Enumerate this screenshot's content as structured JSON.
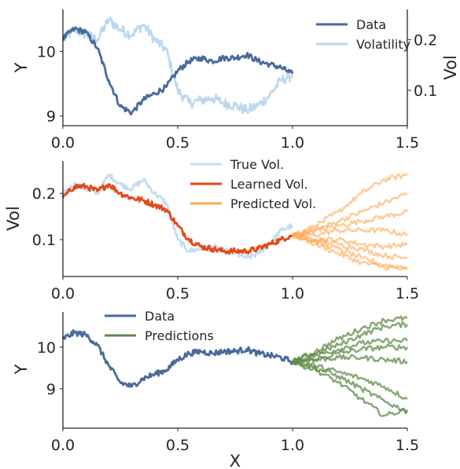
{
  "colors": {
    "data": "#4a6a9b",
    "volatility": "#bdd7ee",
    "true_vol": "#c6dcf0",
    "learned_vol": "#e34a17",
    "predicted_vol": "#ffa64d",
    "predictions": "#5e8a47",
    "axis": "#262626"
  },
  "chart_data": [
    {
      "type": "line",
      "panel": "top",
      "xlabel": "",
      "ylabel": "Y",
      "y2label": "Vol",
      "xlim": [
        0,
        1.5
      ],
      "ylim": [
        8.85,
        10.65
      ],
      "y2lim": [
        0.03,
        0.26
      ],
      "xticks": [
        "0.0",
        "0.5",
        "1.0",
        "1.5"
      ],
      "yticks": [
        "9",
        "10"
      ],
      "y2ticks": [
        "0.1",
        "0.2"
      ],
      "legend": {
        "position": "top-right",
        "entries": [
          "Data",
          "Volatility"
        ]
      },
      "series": [
        {
          "name": "Data",
          "axis": "left",
          "color_key": "data",
          "x": [
            0.0,
            0.05,
            0.1,
            0.15,
            0.2,
            0.25,
            0.3,
            0.35,
            0.4,
            0.45,
            0.5,
            0.55,
            0.6,
            0.65,
            0.7,
            0.75,
            0.8,
            0.85,
            0.9,
            0.95,
            1.0
          ],
          "y": [
            10.2,
            10.35,
            10.3,
            10.05,
            9.55,
            9.15,
            9.05,
            9.25,
            9.35,
            9.45,
            9.7,
            9.85,
            9.9,
            9.85,
            9.9,
            9.9,
            9.95,
            9.85,
            9.8,
            9.75,
            9.65
          ]
        },
        {
          "name": "Volatility",
          "axis": "right",
          "color_key": "volatility",
          "x": [
            0.0,
            0.05,
            0.1,
            0.15,
            0.2,
            0.25,
            0.3,
            0.35,
            0.4,
            0.45,
            0.5,
            0.55,
            0.6,
            0.65,
            0.7,
            0.75,
            0.8,
            0.85,
            0.9,
            0.95,
            1.0
          ],
          "y": [
            0.2,
            0.22,
            0.21,
            0.2,
            0.24,
            0.22,
            0.21,
            0.23,
            0.2,
            0.18,
            0.1,
            0.075,
            0.08,
            0.085,
            0.075,
            0.07,
            0.06,
            0.07,
            0.09,
            0.12,
            0.13
          ]
        }
      ]
    },
    {
      "type": "line",
      "panel": "middle",
      "xlabel": "",
      "ylabel": "Vol",
      "xlim": [
        0,
        1.5
      ],
      "ylim": [
        0.02,
        0.27
      ],
      "xticks": [
        "0.0",
        "0.5",
        "1.0",
        "1.5"
      ],
      "yticks": [
        "0.1",
        "0.2"
      ],
      "legend": {
        "position": "top-center",
        "entries": [
          "True Vol.",
          "Learned Vol.",
          "Predicted Vol."
        ]
      },
      "series": [
        {
          "name": "True Vol.",
          "color_key": "true_vol",
          "x": [
            0.0,
            0.05,
            0.1,
            0.15,
            0.2,
            0.25,
            0.3,
            0.35,
            0.4,
            0.45,
            0.5,
            0.55,
            0.6,
            0.65,
            0.7,
            0.75,
            0.8,
            0.85,
            0.9,
            0.95,
            1.0
          ],
          "y": [
            0.2,
            0.22,
            0.21,
            0.2,
            0.24,
            0.22,
            0.21,
            0.23,
            0.2,
            0.18,
            0.1,
            0.075,
            0.08,
            0.085,
            0.075,
            0.07,
            0.06,
            0.07,
            0.09,
            0.12,
            0.13
          ]
        },
        {
          "name": "Learned Vol.",
          "color_key": "learned_vol",
          "x": [
            0.0,
            0.05,
            0.1,
            0.15,
            0.2,
            0.25,
            0.3,
            0.35,
            0.4,
            0.45,
            0.5,
            0.55,
            0.6,
            0.65,
            0.7,
            0.75,
            0.8,
            0.85,
            0.9,
            0.95,
            1.0
          ],
          "y": [
            0.19,
            0.215,
            0.215,
            0.205,
            0.22,
            0.2,
            0.19,
            0.185,
            0.175,
            0.165,
            0.13,
            0.1,
            0.085,
            0.08,
            0.075,
            0.075,
            0.075,
            0.08,
            0.09,
            0.1,
            0.11
          ]
        },
        {
          "name": "Predicted Vol.",
          "color_key": "predicted_vol",
          "note_paths": 8,
          "x": [
            1.0,
            1.1,
            1.2,
            1.3,
            1.4,
            1.5
          ],
          "paths": [
            [
              0.11,
              0.13,
              0.16,
              0.2,
              0.23,
              0.24
            ],
            [
              0.11,
              0.12,
              0.14,
              0.16,
              0.18,
              0.2
            ],
            [
              0.11,
              0.12,
              0.13,
              0.14,
              0.15,
              0.16
            ],
            [
              0.11,
              0.11,
              0.12,
              0.12,
              0.12,
              0.11
            ],
            [
              0.11,
              0.1,
              0.1,
              0.09,
              0.085,
              0.09
            ],
            [
              0.11,
              0.1,
              0.09,
              0.08,
              0.065,
              0.06
            ],
            [
              0.11,
              0.095,
              0.08,
              0.06,
              0.045,
              0.04
            ],
            [
              0.11,
              0.09,
              0.07,
              0.05,
              0.04,
              0.035
            ]
          ]
        }
      ]
    },
    {
      "type": "line",
      "panel": "bottom",
      "xlabel": "X",
      "ylabel": "Y",
      "xlim": [
        0,
        1.5
      ],
      "ylim": [
        8.05,
        10.85
      ],
      "xticks": [
        "0.0",
        "0.5",
        "1.0",
        "1.5"
      ],
      "yticks": [
        "9",
        "10"
      ],
      "legend": {
        "position": "top-left",
        "entries": [
          "Data",
          "Predictions"
        ]
      },
      "series": [
        {
          "name": "Data",
          "color_key": "data",
          "x": [
            0.0,
            0.05,
            0.1,
            0.15,
            0.2,
            0.25,
            0.3,
            0.35,
            0.4,
            0.45,
            0.5,
            0.55,
            0.6,
            0.65,
            0.7,
            0.75,
            0.8,
            0.85,
            0.9,
            0.95,
            1.0
          ],
          "y": [
            10.2,
            10.35,
            10.3,
            10.05,
            9.55,
            9.15,
            9.05,
            9.25,
            9.35,
            9.45,
            9.7,
            9.85,
            9.9,
            9.85,
            9.9,
            9.9,
            9.95,
            9.85,
            9.8,
            9.75,
            9.65
          ]
        },
        {
          "name": "Predictions",
          "color_key": "predictions",
          "x": [
            1.0,
            1.1,
            1.2,
            1.3,
            1.4,
            1.5
          ],
          "paths": [
            [
              9.65,
              9.9,
              10.2,
              10.45,
              10.65,
              10.7
            ],
            [
              9.65,
              9.85,
              10.05,
              10.3,
              10.5,
              10.55
            ],
            [
              9.65,
              9.8,
              9.95,
              10.1,
              10.15,
              10.15
            ],
            [
              9.65,
              9.7,
              9.85,
              9.95,
              10.0,
              10.0
            ],
            [
              9.65,
              9.7,
              9.75,
              9.75,
              9.7,
              9.65
            ],
            [
              9.65,
              9.55,
              9.4,
              9.25,
              9.05,
              8.75
            ],
            [
              9.65,
              9.5,
              9.3,
              9.0,
              8.7,
              8.45
            ],
            [
              9.65,
              9.45,
              9.15,
              8.75,
              8.35,
              8.5
            ]
          ]
        }
      ]
    }
  ]
}
